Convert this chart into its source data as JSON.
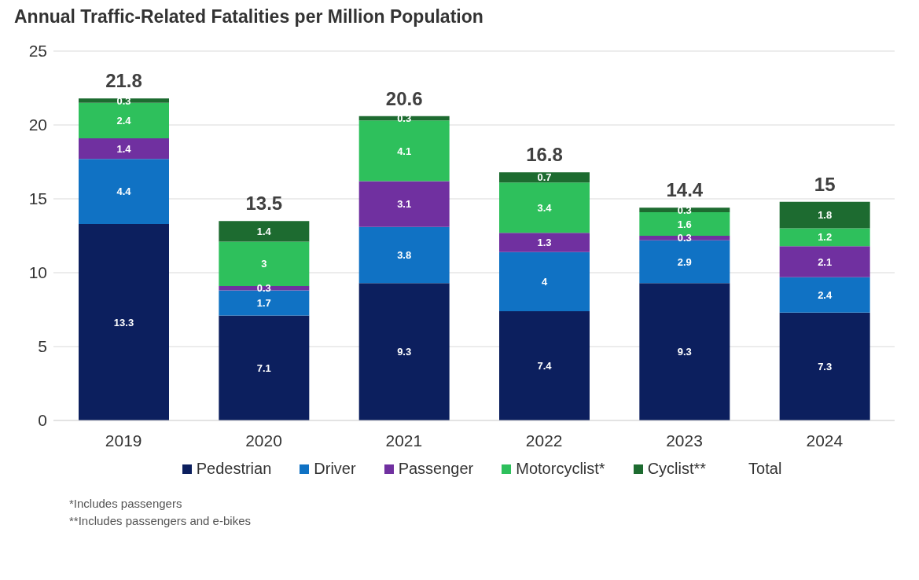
{
  "chart_data": {
    "type": "bar",
    "title": "Annual Traffic-Related Fatalities per Million Population",
    "categories": [
      "2019",
      "2020",
      "2021",
      "2022",
      "2023",
      "2024"
    ],
    "stacked": true,
    "data_labels": true,
    "ylim": [
      0,
      25
    ],
    "yticks": [
      0,
      5,
      10,
      15,
      20,
      25
    ],
    "grid": "y",
    "legend": "bottom",
    "series": [
      {
        "name": "Pedestrian",
        "color": "#0c1f5e",
        "values": [
          13.3,
          7.1,
          9.3,
          7.4,
          9.3,
          7.3
        ]
      },
      {
        "name": "Driver",
        "color": "#1072c4",
        "values": [
          4.4,
          1.7,
          3.8,
          4,
          2.9,
          2.4
        ]
      },
      {
        "name": "Passenger",
        "color": "#7030a0",
        "values": [
          1.4,
          0.3,
          3.1,
          1.3,
          0.3,
          2.1
        ]
      },
      {
        "name": "Motorcyclist*",
        "color": "#2ec05c",
        "values": [
          2.4,
          3,
          4.1,
          3.4,
          1.6,
          1.2
        ]
      },
      {
        "name": "Cyclist**",
        "color": "#1d6b30",
        "values": [
          0.3,
          1.4,
          0.3,
          0.7,
          0.3,
          1.8
        ]
      }
    ],
    "totals": [
      "21.8",
      "13.5",
      "20.6",
      "16.8",
      "14.4",
      "15"
    ],
    "annotations": [
      "Total",
      "*Includes passengers",
      "**Includes passengers and e-bikes"
    ]
  }
}
